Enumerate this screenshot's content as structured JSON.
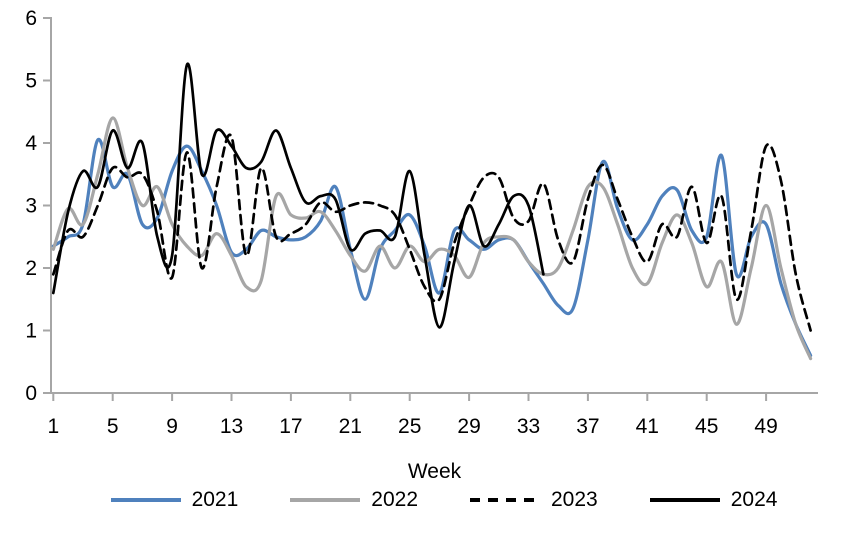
{
  "page": {
    "background": "#ffffff"
  },
  "chart_data": {
    "type": "line",
    "title": "",
    "xlabel": "Week",
    "ylabel": "",
    "xlim": [
      1,
      52.5
    ],
    "ylim": [
      0,
      6
    ],
    "grid": false,
    "smoothed_lines": true,
    "legend_position": "bottom",
    "axis_color": "#a6a6a6",
    "text_color": "#000000",
    "x_ticks": [
      1,
      5,
      9,
      13,
      17,
      21,
      25,
      29,
      33,
      37,
      41,
      45,
      49
    ],
    "y_ticks": [
      0,
      1,
      2,
      3,
      4,
      5,
      6
    ],
    "weeks_start": 1,
    "series": [
      {
        "name": "2021",
        "color": "#4f81bd",
        "style": "solid",
        "values": [
          2.35,
          2.5,
          2.7,
          4.05,
          3.3,
          3.5,
          2.7,
          2.8,
          3.55,
          3.95,
          3.55,
          3.0,
          2.25,
          2.3,
          2.6,
          2.5,
          2.45,
          2.5,
          2.75,
          3.3,
          2.3,
          1.5,
          2.3,
          2.6,
          2.85,
          2.35,
          1.6,
          2.6,
          2.45,
          2.3,
          2.45,
          2.45,
          2.1,
          1.75,
          1.4,
          1.35,
          2.45,
          3.7,
          2.95,
          2.45,
          2.7,
          3.15,
          3.25,
          2.6,
          2.5,
          3.8,
          1.9,
          2.5,
          2.7,
          1.75,
          1.1,
          0.6
        ]
      },
      {
        "name": "2022",
        "color": "#a6a6a6",
        "style": "solid",
        "values": [
          2.3,
          2.95,
          2.7,
          3.5,
          4.4,
          3.6,
          3.0,
          3.3,
          2.7,
          2.35,
          2.2,
          2.55,
          2.2,
          1.7,
          1.8,
          3.15,
          2.85,
          2.8,
          2.9,
          2.6,
          2.2,
          1.95,
          2.35,
          2.0,
          2.35,
          2.1,
          2.3,
          2.2,
          1.85,
          2.4,
          2.5,
          2.45,
          2.1,
          1.9,
          2.0,
          2.6,
          3.3,
          3.3,
          2.7,
          2.0,
          1.75,
          2.4,
          2.85,
          2.4,
          1.7,
          2.1,
          1.1,
          2.0,
          3.0,
          2.0,
          1.1,
          0.55
        ]
      },
      {
        "name": "2023",
        "color": "#000000",
        "style": "dashed",
        "values": [
          1.9,
          2.6,
          2.5,
          3.0,
          3.6,
          3.45,
          3.5,
          2.9,
          1.85,
          3.85,
          2.0,
          3.3,
          4.1,
          2.2,
          3.6,
          2.5,
          2.55,
          2.7,
          3.05,
          2.9,
          3.0,
          3.05,
          3.0,
          2.85,
          2.3,
          1.7,
          1.5,
          2.4,
          3.0,
          3.45,
          3.45,
          2.8,
          2.75,
          3.35,
          2.45,
          2.1,
          3.1,
          3.65,
          3.1,
          2.5,
          2.1,
          2.7,
          2.5,
          3.3,
          2.4,
          3.15,
          1.5,
          2.6,
          3.95,
          3.4,
          1.9,
          1.0
        ]
      },
      {
        "name": "2024",
        "color": "#000000",
        "style": "solid",
        "values": [
          1.6,
          2.9,
          3.55,
          3.3,
          4.2,
          3.6,
          4.0,
          2.5,
          2.2,
          5.25,
          3.5,
          4.2,
          3.95,
          3.6,
          3.7,
          4.2,
          3.6,
          3.05,
          3.15,
          3.1,
          2.3,
          2.55,
          2.6,
          2.5,
          3.55,
          2.2,
          1.05,
          2.1,
          3.0,
          2.35,
          2.7,
          3.15,
          3.0,
          1.9
        ]
      }
    ]
  }
}
